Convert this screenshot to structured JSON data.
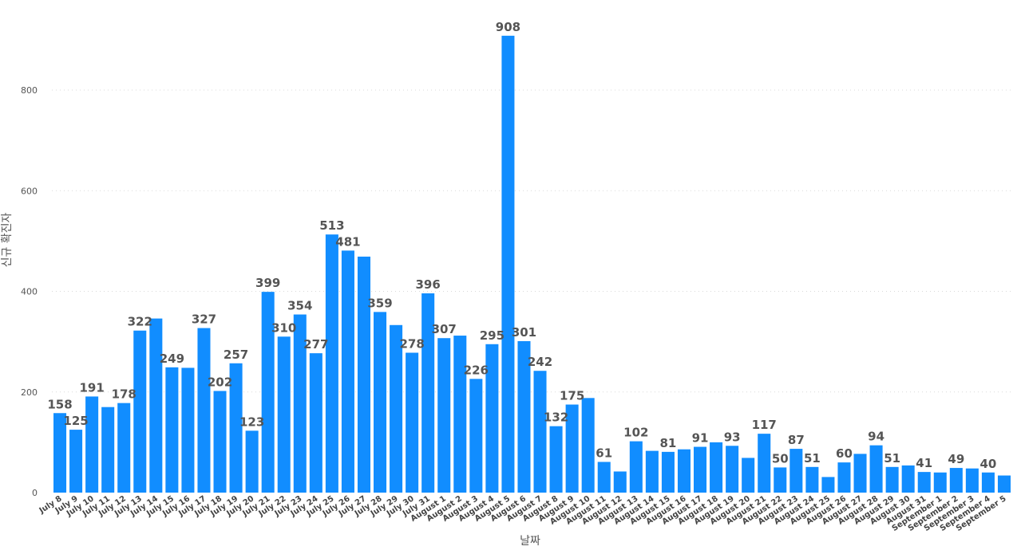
{
  "chart_data": {
    "type": "bar",
    "xlabel": "날짜",
    "ylabel": "신규 확진자",
    "ylim": [
      0,
      950
    ],
    "yticks": [
      0,
      200,
      400,
      600,
      800
    ],
    "grid": true,
    "bar_color": "#118DFF",
    "categories": [
      "July 8",
      "July 9",
      "July 10",
      "July 11",
      "July 12",
      "July 13",
      "July 14",
      "July 15",
      "July 16",
      "July 17",
      "July 18",
      "July 19",
      "July 20",
      "July 21",
      "July 22",
      "July 23",
      "July 24",
      "July 25",
      "July 26",
      "July 27",
      "July 28",
      "July 29",
      "July 30",
      "July 31",
      "August 1",
      "August 2",
      "August 3",
      "August 4",
      "August 5",
      "August 6",
      "August 7",
      "August 8",
      "August 9",
      "August 10",
      "August 11",
      "August 12",
      "August 13",
      "August 14",
      "August 15",
      "August 16",
      "August 17",
      "August 18",
      "August 19",
      "August 20",
      "August 21",
      "August 22",
      "August 23",
      "August 24",
      "August 25",
      "August 26",
      "August 27",
      "August 28",
      "August 29",
      "August 30",
      "August 31",
      "September 1",
      "September 2",
      "September 3",
      "September 4",
      "September 5"
    ],
    "values": [
      158,
      125,
      191,
      170,
      178,
      322,
      346,
      249,
      248,
      327,
      202,
      257,
      123,
      399,
      310,
      354,
      277,
      513,
      481,
      469,
      359,
      333,
      278,
      396,
      307,
      312,
      226,
      295,
      908,
      301,
      242,
      132,
      175,
      188,
      61,
      42,
      102,
      83,
      81,
      86,
      91,
      100,
      93,
      69,
      117,
      50,
      87,
      51,
      31,
      60,
      77,
      94,
      51,
      54,
      41,
      40,
      49,
      48,
      40,
      34
    ],
    "data_labels": [
      "158",
      "125",
      "191",
      "",
      "178",
      "322",
      "",
      "249",
      "",
      "327",
      "202",
      "257",
      "123",
      "399",
      "310",
      "354",
      "277",
      "513",
      "481",
      "",
      "359",
      "",
      "278",
      "396",
      "307",
      "",
      "226",
      "295",
      "908",
      "301",
      "242",
      "132",
      "175",
      "",
      "61",
      "",
      "102",
      "",
      "81",
      "",
      "91",
      "",
      "93",
      "",
      "117",
      "50",
      "87",
      "51",
      "",
      "60",
      "",
      "94",
      "51",
      "",
      "41",
      "",
      "49",
      "",
      "40",
      ""
    ]
  }
}
